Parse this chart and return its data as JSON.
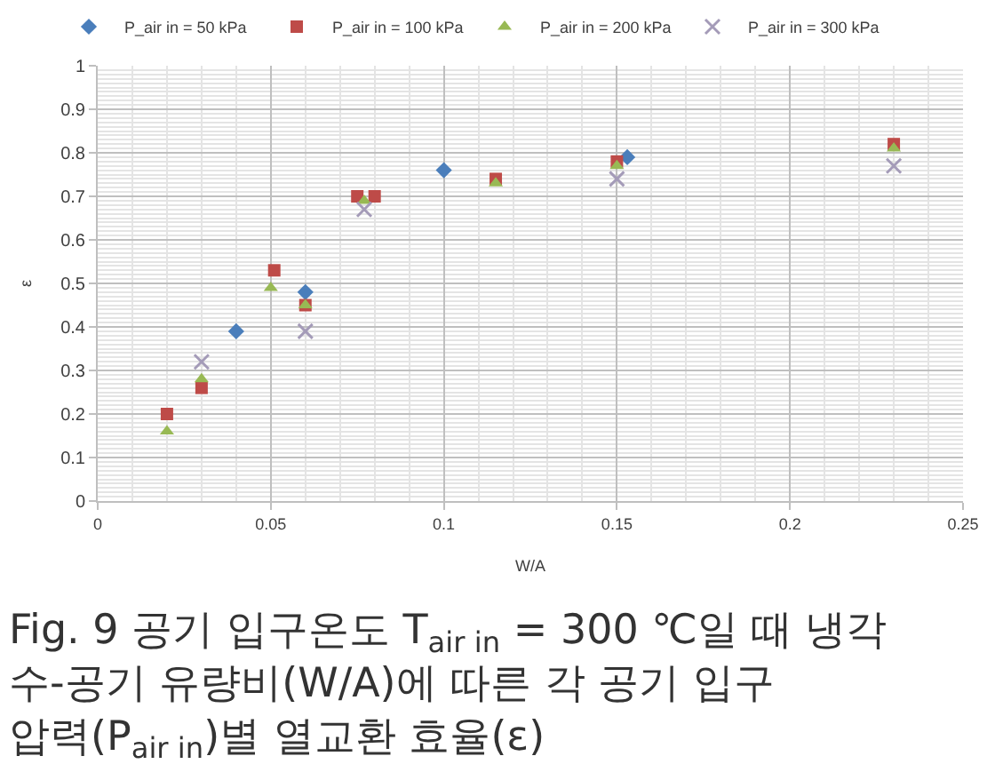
{
  "chart_data": {
    "type": "scatter",
    "xlabel": "W/A",
    "ylabel": "ε",
    "xlim": [
      0,
      0.25
    ],
    "ylim": [
      0,
      1
    ],
    "xticks": [
      0,
      0.05,
      0.1,
      0.15,
      0.2,
      0.25
    ],
    "yticks": [
      0,
      0.1,
      0.2,
      0.3,
      0.4,
      0.5,
      0.6,
      0.7,
      0.8,
      0.9,
      1
    ],
    "grid": true,
    "legend": "top",
    "annotations": [
      "Fig. 9 공기 입구온도 T$_{air in}$ = 300 ℃일 때 냉각\n수-공기 유량비(W/A)에 따른 각 공기 입구\n압력(P$_{air in}$)별 열교환 효율(ε)"
    ],
    "series": [
      {
        "name": "P_air in = 50 kPa",
        "color": "#4a7ebb",
        "marker": "diamond",
        "x": [
          0.04,
          0.06,
          0.1,
          0.153
        ],
        "values": [
          0.39,
          0.48,
          0.76,
          0.79
        ]
      },
      {
        "name": "P_air in = 100 kPa",
        "color": "#be4b48",
        "marker": "square",
        "x": [
          0.02,
          0.03,
          0.051,
          0.06,
          0.075,
          0.08,
          0.115,
          0.15,
          0.23
        ],
        "values": [
          0.2,
          0.26,
          0.53,
          0.45,
          0.7,
          0.7,
          0.74,
          0.78,
          0.82
        ]
      },
      {
        "name": "P_air in = 200 kPa",
        "color": "#98b954",
        "marker": "triangle",
        "x": [
          0.02,
          0.03,
          0.05,
          0.06,
          0.077,
          0.115,
          0.15,
          0.23
        ],
        "values": [
          0.16,
          0.28,
          0.49,
          0.45,
          0.69,
          0.73,
          0.77,
          0.81
        ]
      },
      {
        "name": "P_air in = 300 kPa",
        "color": "#a49bb8",
        "marker": "cross",
        "x": [
          0.03,
          0.06,
          0.077,
          0.15,
          0.23
        ],
        "values": [
          0.32,
          0.39,
          0.67,
          0.74,
          0.77
        ]
      }
    ]
  }
}
